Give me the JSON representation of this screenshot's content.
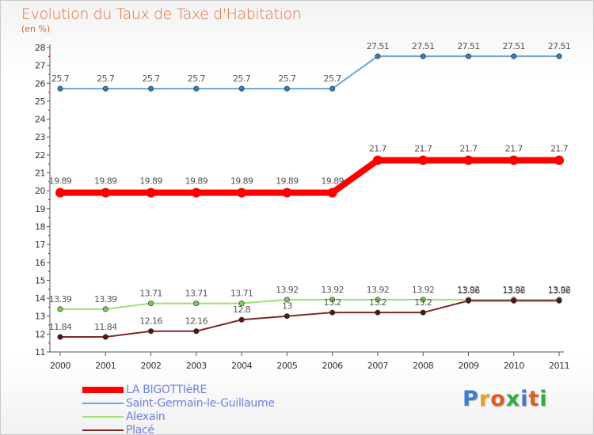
{
  "title": "Evolution du Taux de Taxe d'Habitation",
  "subtitle": "(en %)",
  "logo_text": "Proxiti",
  "logo_letters": [
    "P",
    "r",
    "o",
    "x",
    "i",
    "t",
    "i"
  ],
  "logo_colors": [
    "#3a7fd0",
    "#e8a21e",
    "#e05a2a",
    "#39a844",
    "#3a7fd0",
    "#e05a2a",
    "#39a844"
  ],
  "colors": {
    "axis": "#555555",
    "grid_tick": "#e60000",
    "value_label": "#555555"
  },
  "chart_data": {
    "type": "line",
    "title": "Evolution du Taux de Taxe d'Habitation",
    "ylabel": "(en %)",
    "x": [
      "2000",
      "2001",
      "2002",
      "2003",
      "2004",
      "2005",
      "2006",
      "2007",
      "2008",
      "2009",
      "2010",
      "2011"
    ],
    "ylim": [
      11,
      28
    ],
    "yticks": [
      11,
      12,
      13,
      14,
      15,
      16,
      17,
      18,
      19,
      20,
      21,
      22,
      23,
      24,
      25,
      26,
      27,
      28
    ],
    "legend_position": "bottom-left",
    "series": [
      {
        "name": "LA BIGOTTIèRE",
        "color": "#ff0000",
        "marker": "#ff0000",
        "width": 8,
        "values": [
          19.89,
          19.89,
          19.89,
          19.89,
          19.89,
          19.89,
          19.89,
          21.7,
          21.7,
          21.7,
          21.7,
          21.7
        ],
        "labels": [
          "19.89",
          "19.89",
          "19.89",
          "19.89",
          "19.89",
          "19.89",
          "19.89",
          "21.7",
          "21.7",
          "21.7",
          "21.7",
          "21.7"
        ]
      },
      {
        "name": "Saint-Germain-le-Guillaume",
        "color": "#6fa6d6",
        "marker": "#2f7fc0",
        "width": 2,
        "values": [
          25.7,
          25.7,
          25.7,
          25.7,
          25.7,
          25.7,
          25.7,
          27.51,
          27.51,
          27.51,
          27.51,
          27.51
        ],
        "labels": [
          "25.7",
          "25.7",
          "25.7",
          "25.7",
          "25.7",
          "25.7",
          "25.7",
          "27.51",
          "27.51",
          "27.51",
          "27.51",
          "27.51"
        ]
      },
      {
        "name": "Alexain",
        "color": "#9ee07a",
        "marker": "#7ccd52",
        "width": 2,
        "values": [
          13.39,
          13.39,
          13.71,
          13.71,
          13.71,
          13.92,
          13.92,
          13.92,
          13.92,
          13.92,
          13.92,
          13.92
        ],
        "labels": [
          "13.39",
          "13.39",
          "13.71",
          "13.71",
          "13.71",
          "13.92",
          "13.92",
          "13.92",
          "13.92",
          "13.92",
          "13.92",
          "13.92"
        ]
      },
      {
        "name": "Placé",
        "color": "#7a2a2a",
        "marker": "#5a1414",
        "width": 2,
        "values": [
          11.84,
          11.84,
          12.16,
          12.16,
          12.8,
          13,
          13.2,
          13.2,
          13.2,
          13.86,
          13.86,
          13.86
        ],
        "labels": [
          "11.84",
          "11.84",
          "12.16",
          "12.16",
          "12.8",
          "13",
          "13.2",
          "13.2",
          "13.2",
          "13.86",
          "13.86",
          "13.86"
        ]
      }
    ]
  }
}
